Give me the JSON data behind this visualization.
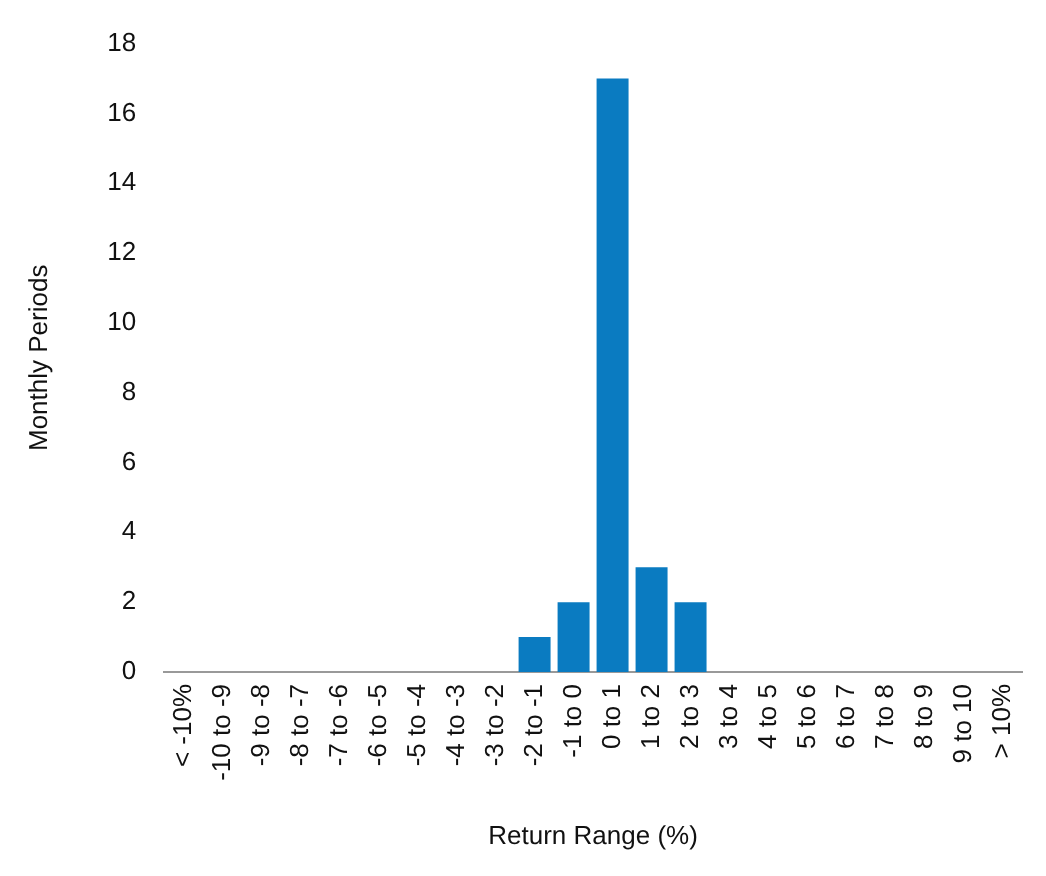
{
  "chart_data": {
    "type": "bar",
    "xlabel": "Return Range (%)",
    "ylabel": "Monthly Periods",
    "categories": [
      "< -10%",
      "-10 to -9",
      "-9 to -8",
      "-8 to -7",
      "-7 to -6",
      "-6 to -5",
      "-5 to -4",
      "-4 to -3",
      "-3 to -2",
      "-2 to -1",
      "-1 to 0",
      "0 to 1",
      "1 to 2",
      "2 to 3",
      "3 to 4",
      "4 to 5",
      "5 to 6",
      "6 to 7",
      "7 to 8",
      "8 to 9",
      "9 to 10",
      "> 10%"
    ],
    "values": [
      0,
      0,
      0,
      0,
      0,
      0,
      0,
      0,
      0,
      1,
      2,
      17,
      3,
      2,
      0,
      0,
      0,
      0,
      0,
      0,
      0,
      0
    ],
    "color": "#0a7bc1",
    "ylim": [
      0,
      18
    ],
    "yticks": [
      0,
      2,
      4,
      6,
      8,
      10,
      12,
      14,
      16,
      18
    ],
    "grid": false,
    "legend": false
  }
}
